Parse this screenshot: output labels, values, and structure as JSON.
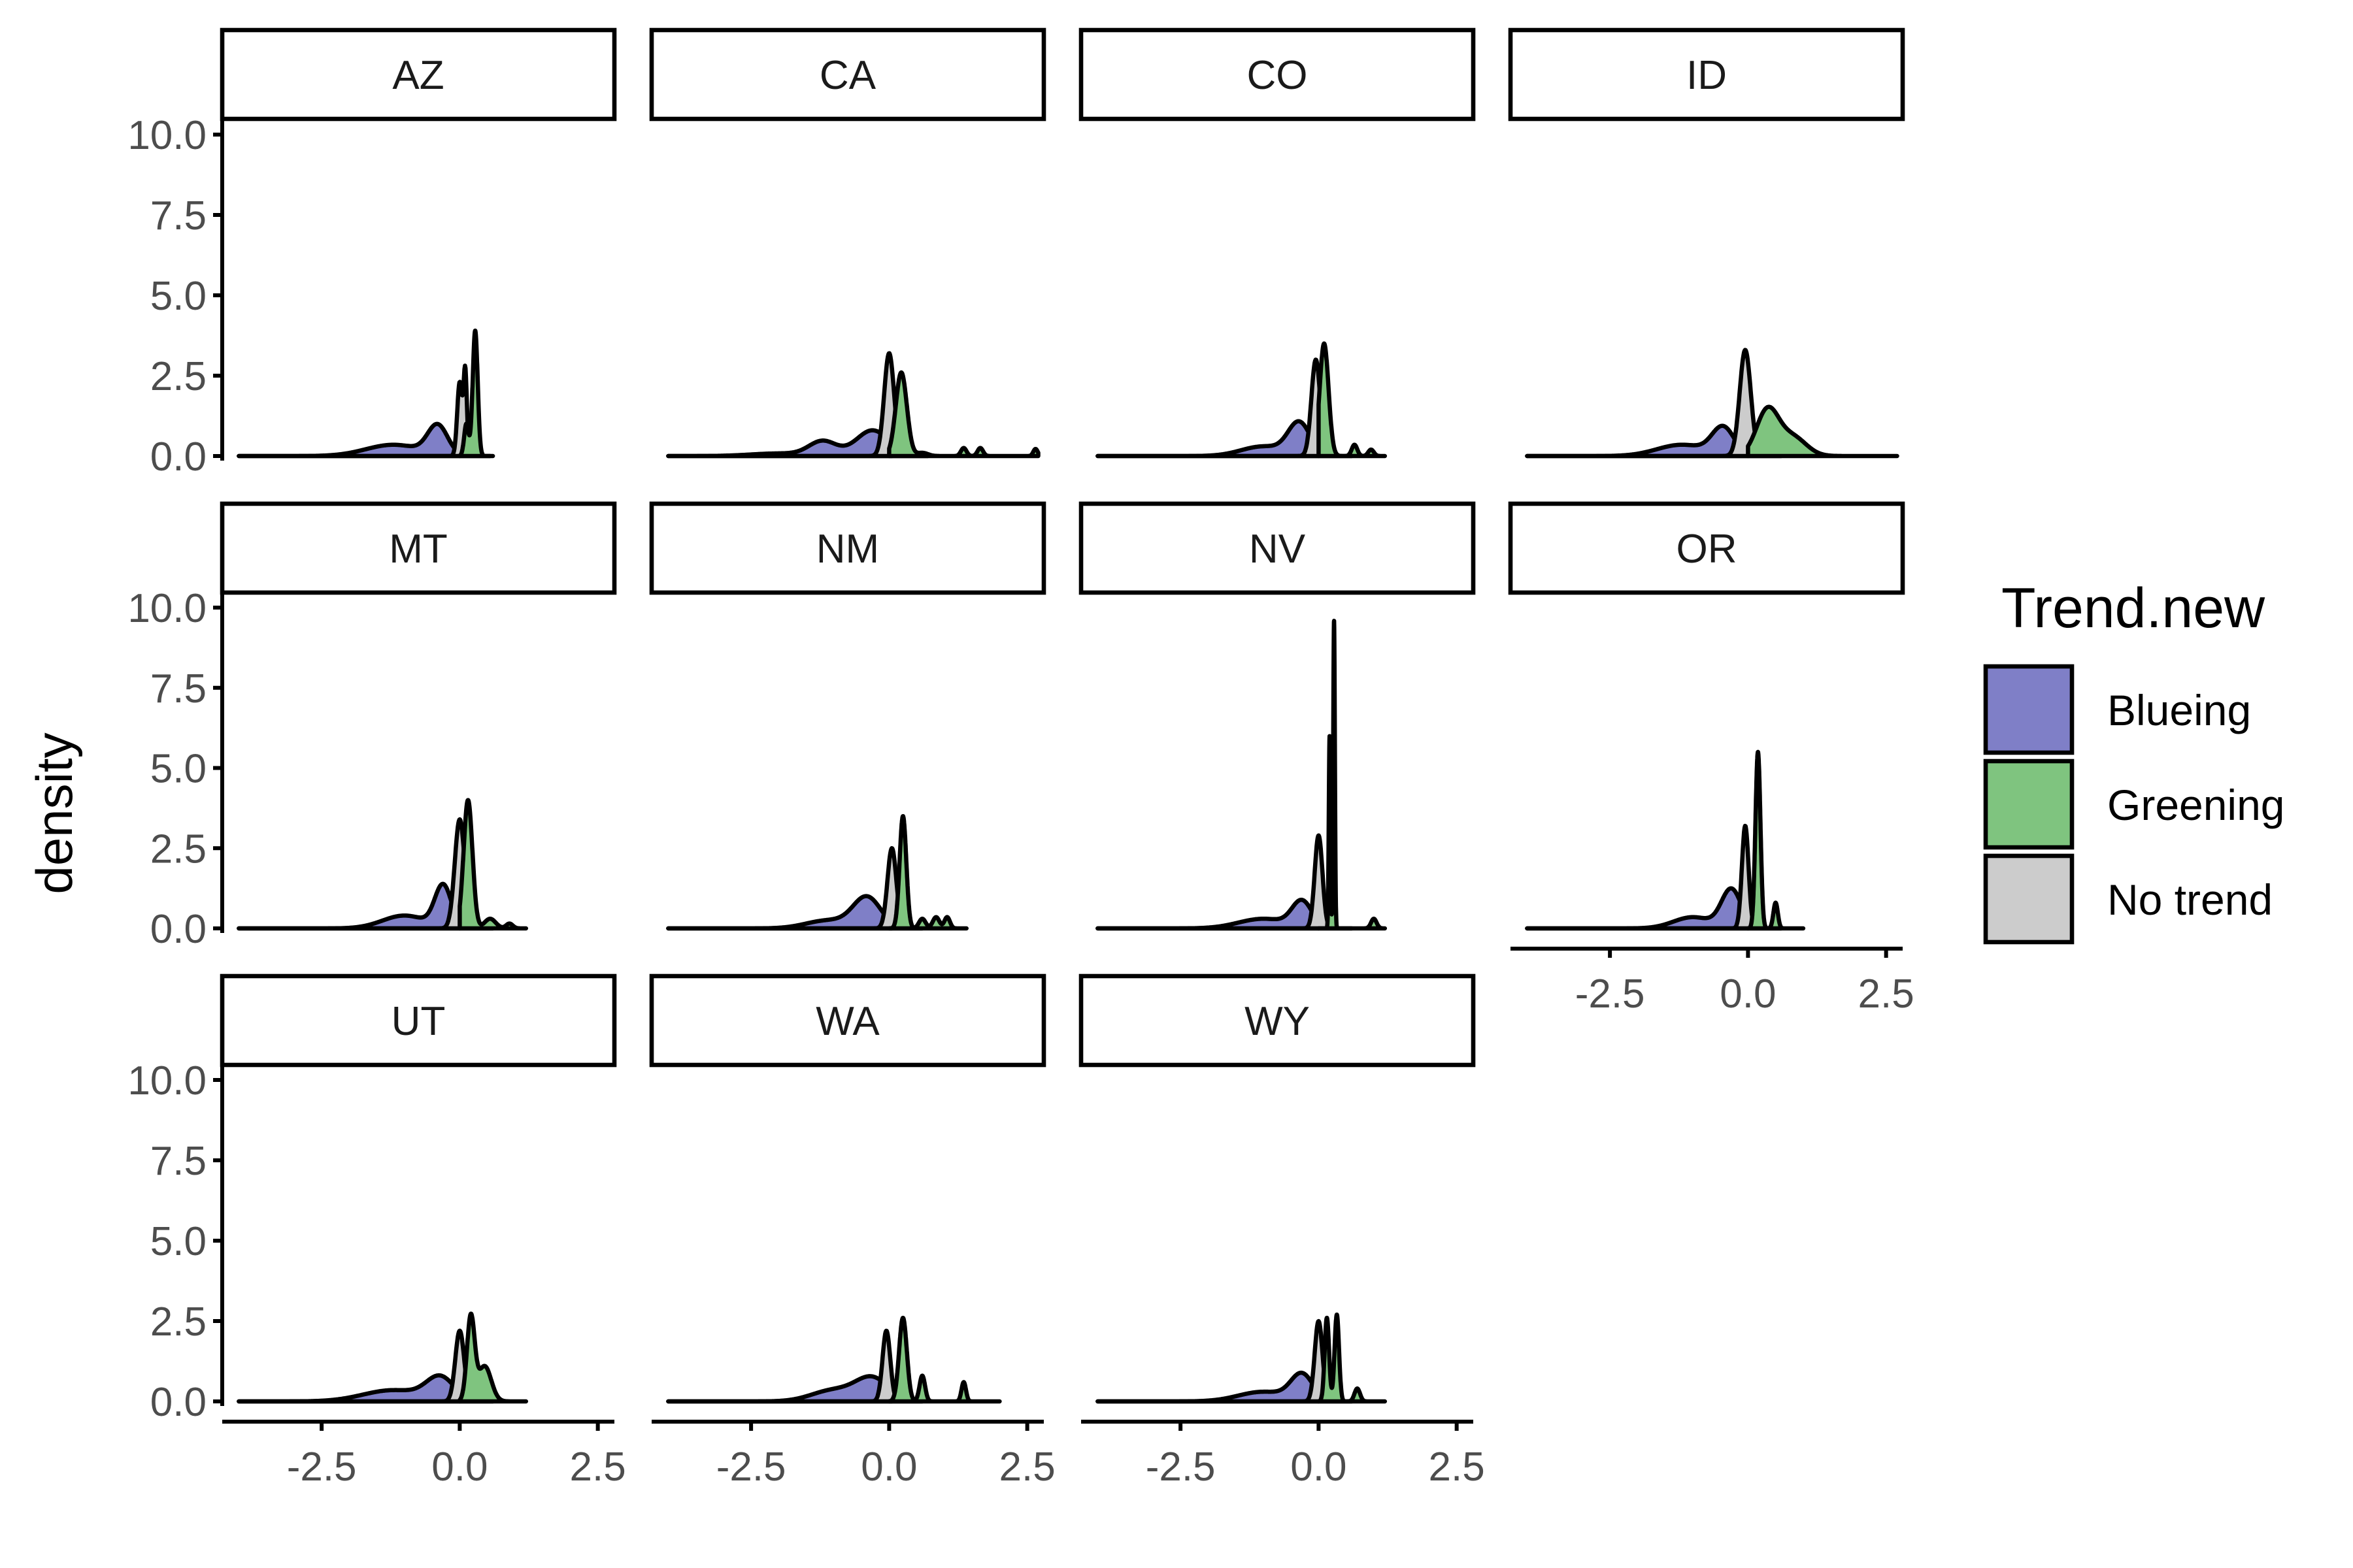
{
  "chart_data": {
    "type": "area",
    "chart_kind": "faceted density plot",
    "ylabel": "density",
    "xlabel": "",
    "xlim": [
      -4.3,
      2.8
    ],
    "ylim": [
      0,
      10
    ],
    "x_ticks": [
      -2.5,
      0.0,
      2.5
    ],
    "x_tick_labels": [
      "-2.5",
      "0.0",
      "2.5"
    ],
    "y_ticks": [
      0,
      2.5,
      5,
      7.5,
      10
    ],
    "y_tick_labels": [
      "0.0",
      "2.5",
      "5.0",
      "7.5",
      "10.0"
    ],
    "legend": {
      "title": "Trend.new",
      "position": "right",
      "entries": [
        {
          "label": "Blueing",
          "color": "#7f7fc7"
        },
        {
          "label": "Greening",
          "color": "#7fc47f"
        },
        {
          "label": "No trend",
          "color": "#cccccc"
        }
      ]
    },
    "panels": [
      {
        "state": "AZ",
        "series": [
          {
            "trend": "Blueing",
            "x_range": [
              -4.0,
              0.0
            ],
            "components": [
              {
                "mu": -0.4,
                "sd": 0.18,
                "h": 0.9
              },
              {
                "mu": -1.2,
                "sd": 0.5,
                "h": 0.35
              }
            ]
          },
          {
            "trend": "No trend",
            "x_range": [
              -4.0,
              0.55
            ],
            "components": [
              {
                "mu": 0.0,
                "sd": 0.045,
                "h": 2.3
              },
              {
                "mu": 0.1,
                "sd": 0.03,
                "h": 2.6
              }
            ]
          },
          {
            "trend": "Greening",
            "x_range": [
              0.0,
              0.6
            ],
            "components": [
              {
                "mu": 0.28,
                "sd": 0.045,
                "h": 3.9
              },
              {
                "mu": 0.12,
                "sd": 0.04,
                "h": 1.0
              }
            ]
          }
        ]
      },
      {
        "state": "CA",
        "series": [
          {
            "trend": "Blueing",
            "x_range": [
              -4.0,
              0.05
            ],
            "components": [
              {
                "mu": -0.3,
                "sd": 0.3,
                "h": 0.8
              },
              {
                "mu": -1.2,
                "sd": 0.25,
                "h": 0.45
              },
              {
                "mu": -2.0,
                "sd": 0.5,
                "h": 0.08
              }
            ]
          },
          {
            "trend": "No trend",
            "x_range": [
              -4.0,
              0.7
            ],
            "components": [
              {
                "mu": 0.0,
                "sd": 0.09,
                "h": 3.2
              }
            ]
          },
          {
            "trend": "Greening",
            "x_range": [
              0.0,
              2.7
            ],
            "components": [
              {
                "mu": 0.22,
                "sd": 0.1,
                "h": 2.6
              },
              {
                "mu": 0.6,
                "sd": 0.1,
                "h": 0.1
              },
              {
                "mu": 1.35,
                "sd": 0.05,
                "h": 0.25
              },
              {
                "mu": 1.65,
                "sd": 0.05,
                "h": 0.25
              },
              {
                "mu": 2.65,
                "sd": 0.04,
                "h": 0.22
              }
            ]
          }
        ]
      },
      {
        "state": "CO",
        "series": [
          {
            "trend": "Blueing",
            "x_range": [
              -4.0,
              0.0
            ],
            "components": [
              {
                "mu": -0.35,
                "sd": 0.2,
                "h": 1.0
              },
              {
                "mu": -1.0,
                "sd": 0.4,
                "h": 0.3
              }
            ]
          },
          {
            "trend": "No trend",
            "x_range": [
              -4.0,
              0.6
            ],
            "components": [
              {
                "mu": -0.05,
                "sd": 0.08,
                "h": 3.0
              }
            ]
          },
          {
            "trend": "Greening",
            "x_range": [
              0.0,
              1.2
            ],
            "components": [
              {
                "mu": 0.1,
                "sd": 0.08,
                "h": 3.5
              },
              {
                "mu": 0.65,
                "sd": 0.05,
                "h": 0.35
              },
              {
                "mu": 0.95,
                "sd": 0.05,
                "h": 0.2
              }
            ]
          }
        ]
      },
      {
        "state": "ID",
        "series": [
          {
            "trend": "Blueing",
            "x_range": [
              -4.0,
              0.0
            ],
            "components": [
              {
                "mu": -0.45,
                "sd": 0.2,
                "h": 0.85
              },
              {
                "mu": -1.2,
                "sd": 0.45,
                "h": 0.35
              }
            ]
          },
          {
            "trend": "No trend",
            "x_range": [
              -4.0,
              0.6
            ],
            "components": [
              {
                "mu": -0.05,
                "sd": 0.1,
                "h": 3.3
              }
            ]
          },
          {
            "trend": "Greening",
            "x_range": [
              0.0,
              2.7
            ],
            "components": [
              {
                "mu": 0.35,
                "sd": 0.2,
                "h": 1.4
              },
              {
                "mu": 0.8,
                "sd": 0.25,
                "h": 0.6
              }
            ]
          }
        ]
      },
      {
        "state": "MT",
        "series": [
          {
            "trend": "Blueing",
            "x_range": [
              -4.0,
              0.0
            ],
            "components": [
              {
                "mu": -0.3,
                "sd": 0.15,
                "h": 1.3
              },
              {
                "mu": -1.0,
                "sd": 0.4,
                "h": 0.4
              }
            ]
          },
          {
            "trend": "No trend",
            "x_range": [
              -4.0,
              0.6
            ],
            "components": [
              {
                "mu": 0.0,
                "sd": 0.09,
                "h": 3.4
              }
            ]
          },
          {
            "trend": "Greening",
            "x_range": [
              0.0,
              1.2
            ],
            "components": [
              {
                "mu": 0.15,
                "sd": 0.08,
                "h": 4.0
              },
              {
                "mu": 0.55,
                "sd": 0.1,
                "h": 0.3
              },
              {
                "mu": 0.9,
                "sd": 0.06,
                "h": 0.15
              }
            ]
          }
        ]
      },
      {
        "state": "NM",
        "series": [
          {
            "trend": "Blueing",
            "x_range": [
              -4.0,
              0.05
            ],
            "components": [
              {
                "mu": -0.4,
                "sd": 0.25,
                "h": 0.95
              },
              {
                "mu": -1.1,
                "sd": 0.4,
                "h": 0.25
              }
            ]
          },
          {
            "trend": "No trend",
            "x_range": [
              -4.0,
              0.6
            ],
            "components": [
              {
                "mu": 0.05,
                "sd": 0.08,
                "h": 2.5
              }
            ]
          },
          {
            "trend": "Greening",
            "x_range": [
              0.0,
              1.4
            ],
            "components": [
              {
                "mu": 0.25,
                "sd": 0.06,
                "h": 3.5
              },
              {
                "mu": 0.6,
                "sd": 0.06,
                "h": 0.3
              },
              {
                "mu": 0.85,
                "sd": 0.06,
                "h": 0.35
              },
              {
                "mu": 1.05,
                "sd": 0.05,
                "h": 0.35
              }
            ]
          }
        ]
      },
      {
        "state": "NV",
        "series": [
          {
            "trend": "Blueing",
            "x_range": [
              -4.0,
              0.0
            ],
            "components": [
              {
                "mu": -0.3,
                "sd": 0.18,
                "h": 0.8
              },
              {
                "mu": -1.0,
                "sd": 0.45,
                "h": 0.3
              }
            ]
          },
          {
            "trend": "No trend",
            "x_range": [
              -4.0,
              0.6
            ],
            "components": [
              {
                "mu": 0.0,
                "sd": 0.07,
                "h": 2.9
              }
            ]
          },
          {
            "trend": "Greening",
            "x_range": [
              0.0,
              1.2
            ],
            "components": [
              {
                "mu": 0.2,
                "sd": 0.015,
                "h": 6.0
              },
              {
                "mu": 0.28,
                "sd": 0.015,
                "h": 9.6
              },
              {
                "mu": 1.0,
                "sd": 0.05,
                "h": 0.3
              }
            ]
          }
        ]
      },
      {
        "state": "OR",
        "series": [
          {
            "trend": "Blueing",
            "x_range": [
              -4.0,
              0.0
            ],
            "components": [
              {
                "mu": -0.3,
                "sd": 0.18,
                "h": 1.2
              },
              {
                "mu": -1.0,
                "sd": 0.35,
                "h": 0.35
              }
            ]
          },
          {
            "trend": "No trend",
            "x_range": [
              -4.0,
              0.6
            ],
            "components": [
              {
                "mu": -0.05,
                "sd": 0.06,
                "h": 3.2
              }
            ]
          },
          {
            "trend": "Greening",
            "x_range": [
              0.0,
              1.0
            ],
            "components": [
              {
                "mu": 0.18,
                "sd": 0.045,
                "h": 5.5
              },
              {
                "mu": 0.5,
                "sd": 0.04,
                "h": 0.8
              }
            ]
          }
        ]
      },
      {
        "state": "UT",
        "series": [
          {
            "trend": "Blueing",
            "x_range": [
              -4.0,
              0.0
            ],
            "components": [
              {
                "mu": -0.35,
                "sd": 0.25,
                "h": 0.7
              },
              {
                "mu": -1.2,
                "sd": 0.55,
                "h": 0.35
              }
            ]
          },
          {
            "trend": "No trend",
            "x_range": [
              -4.0,
              0.6
            ],
            "components": [
              {
                "mu": 0.0,
                "sd": 0.08,
                "h": 2.2
              }
            ]
          },
          {
            "trend": "Greening",
            "x_range": [
              0.0,
              1.2
            ],
            "components": [
              {
                "mu": 0.2,
                "sd": 0.07,
                "h": 2.6
              },
              {
                "mu": 0.45,
                "sd": 0.12,
                "h": 1.1
              }
            ]
          }
        ]
      },
      {
        "state": "WA",
        "series": [
          {
            "trend": "Blueing",
            "x_range": [
              -4.0,
              0.05
            ],
            "components": [
              {
                "mu": -0.3,
                "sd": 0.3,
                "h": 0.7
              },
              {
                "mu": -1.0,
                "sd": 0.4,
                "h": 0.35
              }
            ]
          },
          {
            "trend": "No trend",
            "x_range": [
              -4.0,
              0.6
            ],
            "components": [
              {
                "mu": -0.05,
                "sd": 0.07,
                "h": 2.2
              }
            ]
          },
          {
            "trend": "Greening",
            "x_range": [
              0.0,
              2.0
            ],
            "components": [
              {
                "mu": 0.25,
                "sd": 0.07,
                "h": 2.6
              },
              {
                "mu": 0.6,
                "sd": 0.05,
                "h": 0.8
              },
              {
                "mu": 1.35,
                "sd": 0.04,
                "h": 0.6
              }
            ]
          }
        ]
      },
      {
        "state": "WY",
        "series": [
          {
            "trend": "Blueing",
            "x_range": [
              -4.0,
              0.0
            ],
            "components": [
              {
                "mu": -0.3,
                "sd": 0.2,
                "h": 0.8
              },
              {
                "mu": -1.0,
                "sd": 0.45,
                "h": 0.3
              }
            ]
          },
          {
            "trend": "No trend",
            "x_range": [
              -4.0,
              0.6
            ],
            "components": [
              {
                "mu": 0.0,
                "sd": 0.07,
                "h": 2.5
              }
            ]
          },
          {
            "trend": "Greening",
            "x_range": [
              0.0,
              1.2
            ],
            "components": [
              {
                "mu": 0.15,
                "sd": 0.04,
                "h": 2.6
              },
              {
                "mu": 0.33,
                "sd": 0.04,
                "h": 2.7
              },
              {
                "mu": 0.7,
                "sd": 0.05,
                "h": 0.4
              }
            ]
          }
        ]
      }
    ]
  }
}
